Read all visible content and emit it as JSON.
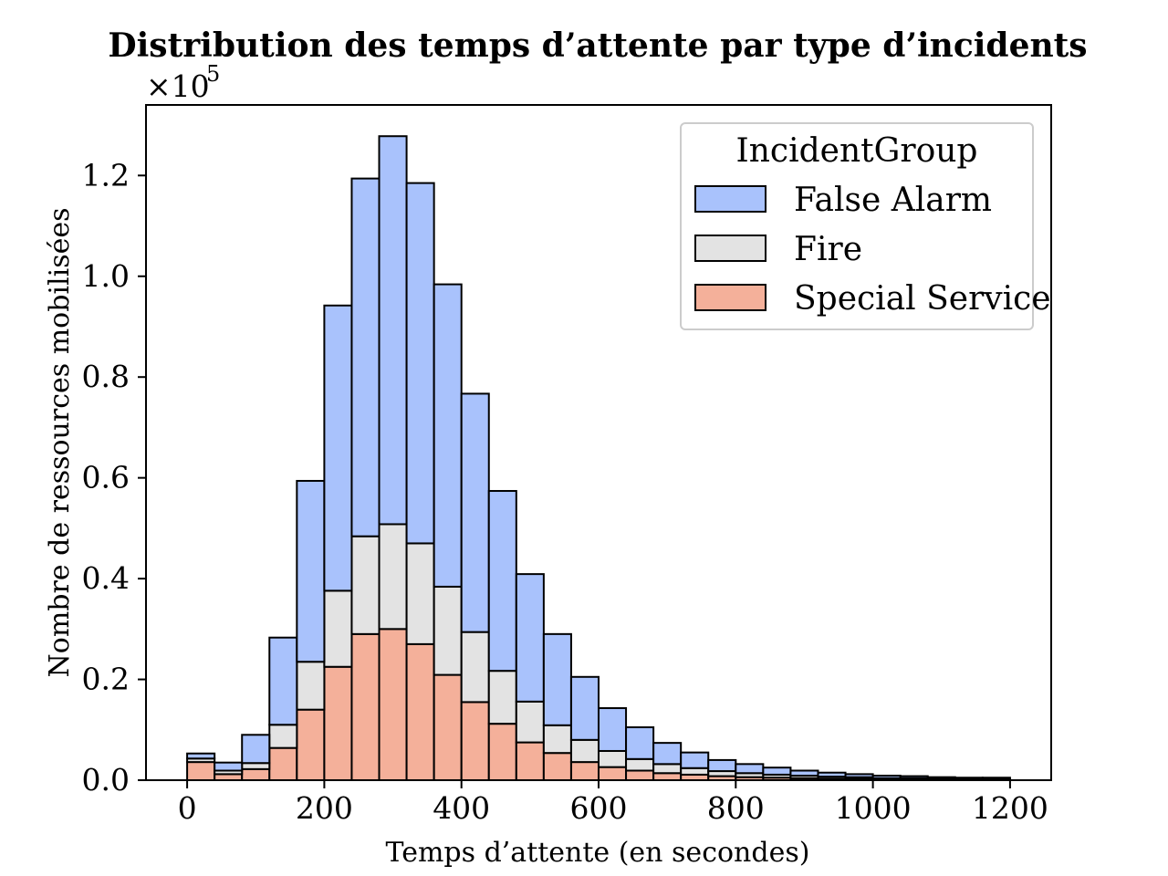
{
  "chart_data": {
    "type": "bar",
    "stacked": true,
    "title": "Distribution des temps d’attente par type d’incidents",
    "xlabel": "Temps d’attente (en secondes)",
    "ylabel": "Nombre de ressources mobilisées",
    "y_multiplier": "×10",
    "y_multiplier_exponent": "5",
    "xlim": [
      -60,
      1260
    ],
    "ylim": [
      0,
      1.34
    ],
    "xticks": [
      0,
      200,
      400,
      600,
      800,
      1000,
      1200
    ],
    "xtick_labels": [
      "0",
      "200",
      "400",
      "600",
      "800",
      "1000",
      "1200"
    ],
    "yticks": [
      0,
      0.2,
      0.4,
      0.6,
      0.8,
      1.0,
      1.2
    ],
    "ytick_labels": [
      "0.0",
      "0.2",
      "0.4",
      "0.6",
      "0.8",
      "1.0",
      "1.2"
    ],
    "legend": {
      "title": "IncidentGroup",
      "position": "top-right"
    },
    "bins": [
      [
        0,
        40
      ],
      [
        40,
        80
      ],
      [
        80,
        120
      ],
      [
        120,
        160
      ],
      [
        160,
        200
      ],
      [
        200,
        240
      ],
      [
        240,
        280
      ],
      [
        280,
        320
      ],
      [
        320,
        360
      ],
      [
        360,
        400
      ],
      [
        400,
        440
      ],
      [
        440,
        480
      ],
      [
        480,
        520
      ],
      [
        520,
        560
      ],
      [
        560,
        600
      ],
      [
        600,
        640
      ],
      [
        640,
        680
      ],
      [
        680,
        720
      ],
      [
        720,
        760
      ],
      [
        760,
        800
      ],
      [
        800,
        840
      ],
      [
        840,
        880
      ],
      [
        880,
        920
      ],
      [
        920,
        960
      ],
      [
        960,
        1000
      ],
      [
        1000,
        1040
      ],
      [
        1040,
        1080
      ],
      [
        1080,
        1120
      ],
      [
        1120,
        1160
      ],
      [
        1160,
        1200
      ]
    ],
    "series": [
      {
        "name": "Special Service",
        "color": "#f4b09a",
        "values": [
          0.036,
          0.012,
          0.022,
          0.064,
          0.14,
          0.225,
          0.29,
          0.3,
          0.27,
          0.209,
          0.155,
          0.112,
          0.075,
          0.054,
          0.036,
          0.026,
          0.019,
          0.014,
          0.011,
          0.008,
          0.006,
          0.005,
          0.004,
          0.003,
          0.003,
          0.002,
          0.002,
          0.001,
          0.001,
          0.001
        ]
      },
      {
        "name": "Fire",
        "color": "#e3e3e3",
        "values": [
          0.007,
          0.007,
          0.012,
          0.046,
          0.095,
          0.151,
          0.194,
          0.208,
          0.2,
          0.175,
          0.139,
          0.105,
          0.081,
          0.055,
          0.044,
          0.032,
          0.023,
          0.018,
          0.013,
          0.01,
          0.008,
          0.006,
          0.005,
          0.004,
          0.003,
          0.002,
          0.002,
          0.002,
          0.001,
          0.001
        ]
      },
      {
        "name": "False Alarm",
        "color": "#a9c2fc",
        "values": [
          0.01,
          0.016,
          0.056,
          0.173,
          0.359,
          0.566,
          0.71,
          0.77,
          0.715,
          0.6,
          0.473,
          0.357,
          0.253,
          0.181,
          0.125,
          0.085,
          0.063,
          0.042,
          0.031,
          0.022,
          0.018,
          0.014,
          0.01,
          0.008,
          0.006,
          0.005,
          0.004,
          0.003,
          0.003,
          0.003
        ]
      }
    ]
  }
}
